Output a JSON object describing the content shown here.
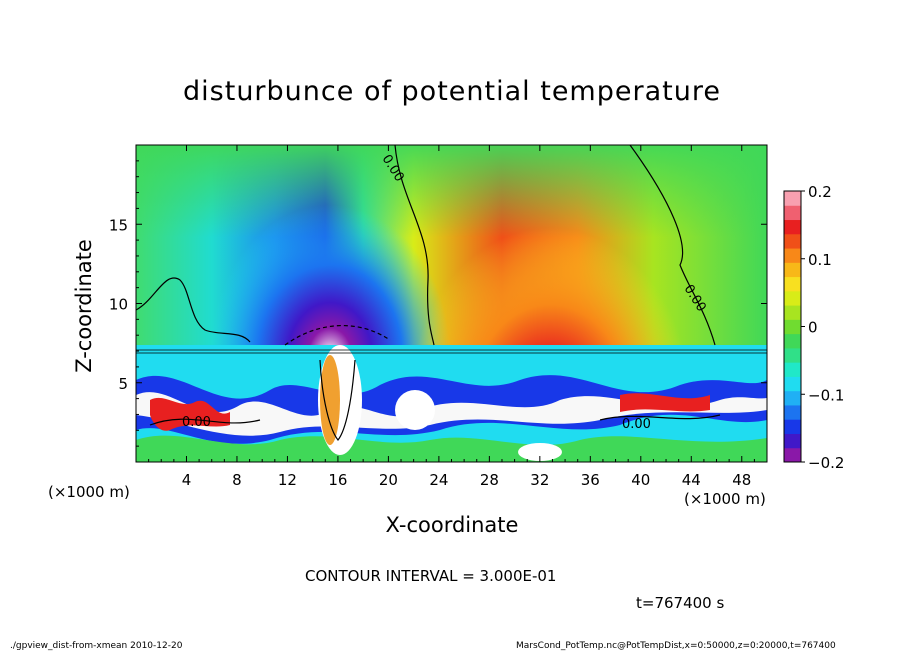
{
  "chart_data": {
    "type": "heatmap",
    "title": "disturbunce of potential temperature",
    "xlabel": "X-coordinate",
    "ylabel": "Z-coordinate",
    "x_unit": "(×1000 m)",
    "xlim": [
      0,
      50
    ],
    "ylim": [
      0,
      20
    ],
    "x_ticks": [
      "4",
      "8",
      "12",
      "16",
      "20",
      "24",
      "28",
      "32",
      "36",
      "40",
      "44",
      "48"
    ],
    "y_ticks": [
      "5",
      "10",
      "15"
    ],
    "colorbar": {
      "range": [
        -0.2,
        0.2
      ],
      "tick_labels": [
        "0.2",
        "0.1",
        "0",
        "−0.1",
        "−0.2"
      ],
      "tick_values": [
        0.2,
        0.1,
        0,
        -0.1,
        -0.2
      ],
      "colors": [
        "#8a18a8",
        "#4018c8",
        "#1838e8",
        "#1c74f0",
        "#20b0f4",
        "#20dcf0",
        "#20e8c8",
        "#30e088",
        "#40d858",
        "#70dc30",
        "#a8e420",
        "#d8ec18",
        "#f8e020",
        "#f8b818",
        "#f88818",
        "#f05018",
        "#e82020",
        "#f06070",
        "#f8a0b0"
      ]
    },
    "contour_labels": [
      "0.00",
      "0.00",
      "0.00",
      "0.00"
    ],
    "grid": false
  },
  "contour_interval": "CONTOUR INTERVAL = 3.000E-01",
  "time_label": "t=767400 s",
  "footer": {
    "left": "./gpview_dist-from-xmean  2010-12-20",
    "right": "MarsCond_PotTemp.nc@PotTempDist,x=0:50000,z=0:20000,t=767400"
  }
}
